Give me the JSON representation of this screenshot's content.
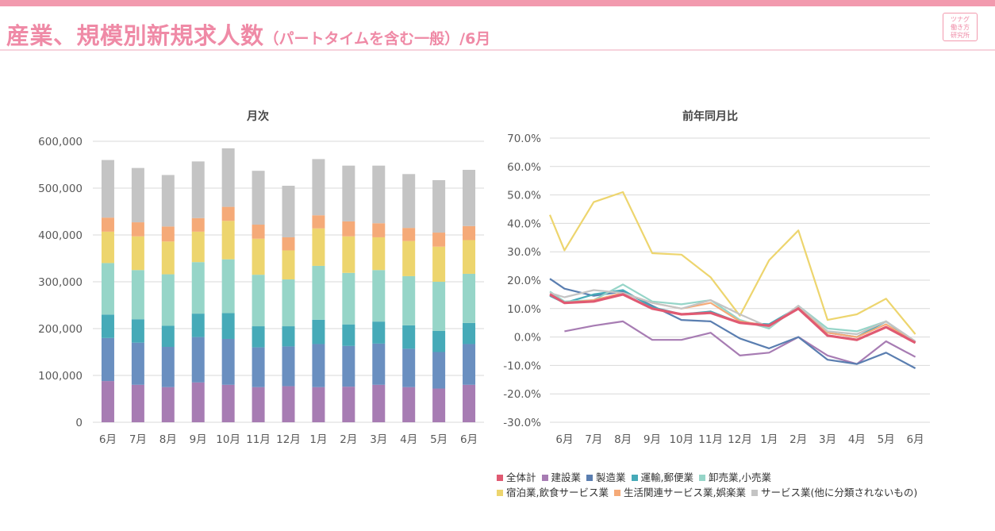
{
  "header": {
    "title": "産業、規模別新規求人数",
    "subtitle": "（パートタイムを含む一般）/6月",
    "logo_lines": [
      "ツナグ",
      "働き方",
      "研究所"
    ],
    "accent": "#ef8aa6"
  },
  "chart_data": [
    {
      "type": "bar",
      "stacked": true,
      "title": "月次",
      "categories": [
        "6月",
        "7月",
        "8月",
        "9月",
        "10月",
        "11月",
        "12月",
        "1月",
        "2月",
        "3月",
        "4月",
        "5月",
        "6月"
      ],
      "ylim": [
        0,
        600000
      ],
      "yticks": [
        0,
        100000,
        200000,
        300000,
        400000,
        500000,
        600000
      ],
      "ytick_labels": [
        "0",
        "100,000",
        "200,000",
        "300,000",
        "400,000",
        "500,000",
        "600,000"
      ],
      "grid": true,
      "series": [
        {
          "name": "建設業",
          "color": "#a77cb3",
          "values": [
            88000,
            80000,
            75000,
            85000,
            80000,
            75000,
            77000,
            75000,
            76000,
            80000,
            75000,
            72000,
            80000
          ]
        },
        {
          "name": "製造業",
          "color": "#6a8fc0",
          "values": [
            92000,
            90000,
            86000,
            97000,
            98000,
            85000,
            85000,
            92000,
            87000,
            88000,
            82000,
            78000,
            87000
          ]
        },
        {
          "name": "運輸,郵便業",
          "color": "#46aab8",
          "values": [
            50000,
            50000,
            45000,
            50000,
            55000,
            45000,
            43000,
            52000,
            46000,
            47000,
            50000,
            45000,
            45000
          ]
        },
        {
          "name": "卸売業,小売業",
          "color": "#96d5c8",
          "values": [
            110000,
            105000,
            110000,
            110000,
            115000,
            110000,
            100000,
            115000,
            110000,
            110000,
            105000,
            105000,
            105000
          ]
        },
        {
          "name": "宿泊業,飲食サービス業",
          "color": "#edd56e",
          "values": [
            67000,
            72000,
            70000,
            65000,
            82000,
            77000,
            62000,
            80000,
            78000,
            70000,
            75000,
            75000,
            72000
          ]
        },
        {
          "name": "生活関連サービス業,娯楽業",
          "color": "#f5aa78",
          "values": [
            30000,
            30000,
            32000,
            29000,
            30000,
            30000,
            28000,
            28000,
            32000,
            30000,
            28000,
            30000,
            30000
          ]
        },
        {
          "name": "サービス業(他に分類されないもの)",
          "color": "#c4c4c4",
          "values": [
            123000,
            116000,
            110000,
            121000,
            125000,
            115000,
            110000,
            120000,
            119000,
            123000,
            115000,
            112000,
            120000
          ]
        }
      ]
    },
    {
      "type": "line",
      "title": "前年同月比",
      "categories": [
        "6月",
        "7月",
        "8月",
        "9月",
        "10月",
        "11月",
        "12月",
        "1月",
        "2月",
        "3月",
        "4月",
        "5月",
        "6月"
      ],
      "ylim": [
        -30,
        70
      ],
      "yticks": [
        -30,
        -20,
        -10,
        0,
        10,
        20,
        30,
        40,
        50,
        60,
        70
      ],
      "ytick_labels": [
        "-30.0%",
        "-20.0%",
        "-10.0%",
        "0.0%",
        "10.0%",
        "20.0%",
        "30.0%",
        "40.0%",
        "50.0%",
        "60.0%",
        "70.0%"
      ],
      "grid": true,
      "lead_in": {
        "宿泊業,飲食サービス業": 43,
        "製造業": 20.5,
        "卸売業,小売業": 16,
        "全体計": 15,
        "運輸,郵便業": 14.5,
        "サービス業(他に分類されないもの)": 15.5
      },
      "series": [
        {
          "name": "全体計",
          "color": "#e05a72",
          "values": [
            12,
            12.5,
            15,
            10,
            8,
            8.5,
            5,
            4,
            10,
            0.5,
            -1,
            3.5,
            -2
          ]
        },
        {
          "name": "建設業",
          "color": "#a77cb3",
          "values": [
            2,
            4,
            5.5,
            -1,
            -1,
            1.5,
            -6.5,
            -5.5,
            0,
            -6.5,
            -9.5,
            -1.5,
            -7
          ]
        },
        {
          "name": "製造業",
          "color": "#5a7eb0",
          "values": [
            17,
            14.5,
            16,
            11,
            6,
            5.5,
            -0.5,
            -4,
            0,
            -8,
            -9.5,
            -5.5,
            -11
          ]
        },
        {
          "name": "運輸,郵便業",
          "color": "#46aab8",
          "values": [
            12,
            15,
            16.5,
            10.5,
            8,
            9,
            5,
            4.5,
            10.5,
            1.5,
            0,
            5.5,
            -2
          ]
        },
        {
          "name": "卸売業,小売業",
          "color": "#96d5c8",
          "values": [
            12.5,
            13,
            18.5,
            12.5,
            11.5,
            13,
            6,
            3,
            11,
            3,
            2,
            5.5,
            -1.5
          ]
        },
        {
          "name": "宿泊業,飲食サービス業",
          "color": "#edd56e",
          "values": [
            30.5,
            47.5,
            51,
            29.5,
            29,
            21,
            7.5,
            27,
            37.5,
            6,
            8,
            13.5,
            1
          ]
        },
        {
          "name": "生活関連サービス業,娯楽業",
          "color": "#f5aa78",
          "values": [
            12,
            13,
            15.5,
            12,
            10,
            12,
            5.5,
            4,
            10.5,
            1.5,
            0,
            4.5,
            -2
          ]
        },
        {
          "name": "サービス業(他に分類されないもの)",
          "color": "#c4c4c4",
          "values": [
            14,
            16.5,
            15.5,
            12,
            10,
            13,
            8,
            3.5,
            11,
            2,
            1,
            5.5,
            -1.5
          ]
        }
      ],
      "legend": {
        "placement": "bottom",
        "rows": [
          [
            "全体計",
            "建設業",
            "製造業",
            "運輸,郵便業",
            "卸売業,小売業"
          ],
          [
            "宿泊業,飲食サービス業",
            "生活関連サービス業,娯楽業",
            "サービス業(他に分類されないもの)"
          ]
        ]
      }
    }
  ]
}
